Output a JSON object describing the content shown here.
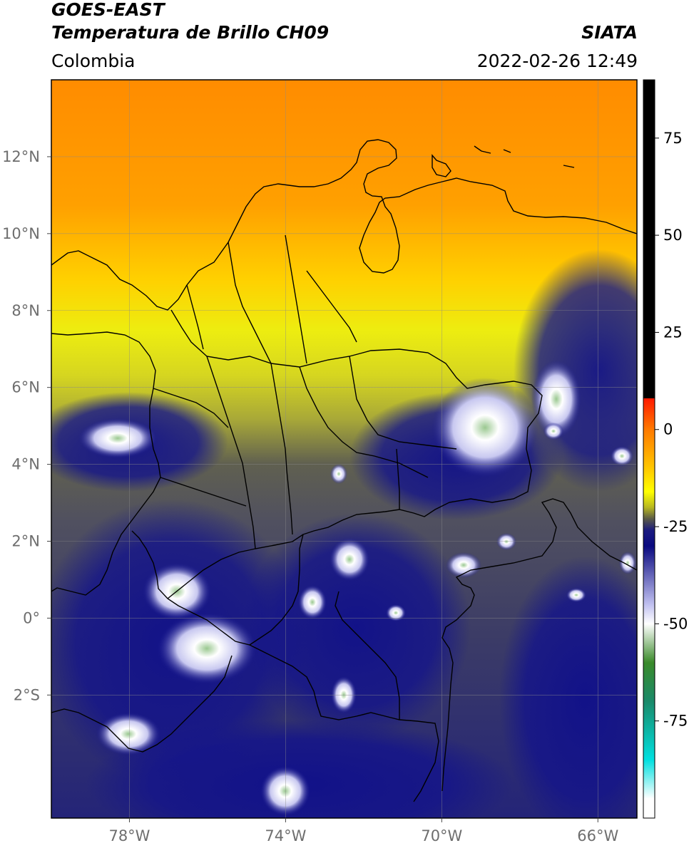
{
  "header": {
    "satellite": "GOES-EAST",
    "product": "Temperatura de Brillo CH09",
    "brand": "SIATA",
    "region": "Colombia",
    "datetime": "2022-02-26 12:49"
  },
  "map": {
    "lon_range": [
      -80,
      -65
    ],
    "lat_range": [
      -5.2,
      14
    ],
    "lon_ticks": [
      {
        "value": -78,
        "label": "78°W"
      },
      {
        "value": -74,
        "label": "74°W"
      },
      {
        "value": -70,
        "label": "70°W"
      },
      {
        "value": -66,
        "label": "66°W"
      }
    ],
    "lat_ticks": [
      {
        "value": 12,
        "label": "12°N"
      },
      {
        "value": 10,
        "label": "10°N"
      },
      {
        "value": 8,
        "label": "8°N"
      },
      {
        "value": 6,
        "label": "6°N"
      },
      {
        "value": 4,
        "label": "4°N"
      },
      {
        "value": 2,
        "label": "2°N"
      },
      {
        "value": 0,
        "label": "0°"
      },
      {
        "value": -2,
        "label": "2°S"
      }
    ],
    "gridlines": true
  },
  "colorbar": {
    "range": [
      -100,
      90
    ],
    "ticks": [
      {
        "value": 75,
        "label": "75"
      },
      {
        "value": 50,
        "label": "50"
      },
      {
        "value": 25,
        "label": "25"
      },
      {
        "value": 0,
        "label": "0"
      },
      {
        "value": -25,
        "label": "-25"
      },
      {
        "value": -50,
        "label": "-50"
      },
      {
        "value": -75,
        "label": "-75"
      }
    ],
    "stops": [
      {
        "value": 90,
        "color": "#000000"
      },
      {
        "value": 8,
        "color": "#000000"
      },
      {
        "value": 8,
        "color": "#ff1a00"
      },
      {
        "value": 0,
        "color": "#ff7a00"
      },
      {
        "value": -10,
        "color": "#ffc800"
      },
      {
        "value": -16,
        "color": "#ffff00"
      },
      {
        "value": -20,
        "color": "#b8b820"
      },
      {
        "value": -23,
        "color": "#5a5a48"
      },
      {
        "value": -26,
        "color": "#1a1a80"
      },
      {
        "value": -30,
        "color": "#0a0a80"
      },
      {
        "value": -45,
        "color": "#c0c0f0"
      },
      {
        "value": -50,
        "color": "#ffffff"
      },
      {
        "value": -60,
        "color": "#3a8a2a"
      },
      {
        "value": -70,
        "color": "#1a8a6a"
      },
      {
        "value": -85,
        "color": "#00e0e0"
      },
      {
        "value": -95,
        "color": "#ffffff"
      }
    ]
  }
}
